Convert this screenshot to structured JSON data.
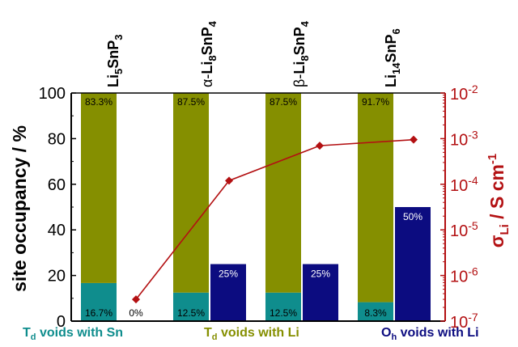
{
  "chart_data": {
    "type": "bar",
    "stacked": true,
    "categories": [
      {
        "base": "Li",
        "sub1": "5",
        "mid": "SnP",
        "sub2": "3",
        "prefix": ""
      },
      {
        "base": "Li",
        "sub1": "8",
        "mid": "SnP",
        "sub2": "4",
        "prefix": "α-"
      },
      {
        "base": "Li",
        "sub1": "8",
        "mid": "SnP",
        "sub2": "4",
        "prefix": "β-"
      },
      {
        "base": "Li",
        "sub1": "14",
        "mid": "SnP",
        "sub2": "6",
        "prefix": ""
      }
    ],
    "series": [
      {
        "key": "td_sn",
        "color": "#0f8d8d",
        "values": [
          16.7,
          12.5,
          12.5,
          8.3
        ],
        "labels": [
          "16.7%",
          "12.5%",
          "12.5%",
          "8.3%"
        ]
      },
      {
        "key": "td_li",
        "color": "#858f00",
        "values": [
          83.3,
          87.5,
          87.5,
          91.7
        ],
        "labels": [
          "83.3%",
          "87.5%",
          "87.5%",
          "91.7%"
        ]
      },
      {
        "key": "oh_li",
        "color": "#0c0c80",
        "values": [
          0,
          25,
          25,
          50
        ],
        "labels": [
          "0%",
          "25%",
          "25%",
          "50%"
        ]
      }
    ],
    "conductivity": {
      "color": "#b31012",
      "values": [
        3e-07,
        0.00012,
        0.0007,
        0.00095
      ]
    },
    "y_left": {
      "label": "site occupancy / %",
      "range": [
        0,
        100
      ],
      "ticks": [
        "0",
        "20",
        "40",
        "60",
        "80",
        "100"
      ]
    },
    "y_right": {
      "label": "σ",
      "label_sub": "Li",
      "label_unit": " / S cm",
      "label_sup": "-1",
      "scale": "log",
      "range": [
        1e-07,
        0.01
      ],
      "ticks": [
        {
          "base": "10",
          "exp": "-7"
        },
        {
          "base": "10",
          "exp": "-6"
        },
        {
          "base": "10",
          "exp": "-5"
        },
        {
          "base": "10",
          "exp": "-4"
        },
        {
          "base": "10",
          "exp": "-3"
        },
        {
          "base": "10",
          "exp": "-2"
        }
      ]
    }
  },
  "legend": {
    "td_sn": {
      "main": "T",
      "sub": "d",
      "rest": " voids with Sn"
    },
    "td_li": {
      "main": "T",
      "sub": "d",
      "rest": " voids with Li"
    },
    "oh_li": {
      "main": "O",
      "sub": "h",
      "rest": " voids with Li"
    }
  }
}
